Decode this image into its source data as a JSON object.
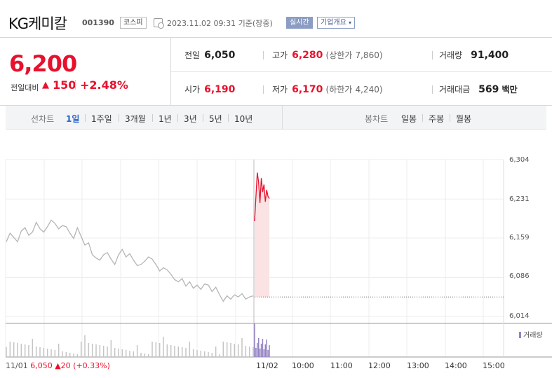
{
  "header": {
    "company_name": "KG케미칼",
    "code": "001390",
    "market": "코스피",
    "as_of": "2023.11.02 09:31 기준(장중)",
    "live_badge": "실시간",
    "company_info_button": "기업개요"
  },
  "quote": {
    "price": "6,200",
    "change_label": "전일대비",
    "change_arrow": "▲",
    "change": "150",
    "change_pct": "+2.48%",
    "prev_close_label": "전일",
    "prev_close": "6,050",
    "high_label": "고가",
    "high": "6,280",
    "upper_limit_label": "(상한가",
    "upper_limit": "7,860)",
    "volume_label": "거래량",
    "volume": "91,400",
    "open_label": "시가",
    "open": "6,190",
    "low_label": "저가",
    "low": "6,170",
    "lower_limit_label": "(하한가",
    "lower_limit": "4,240)",
    "trade_value_label": "거래대금",
    "trade_value": "569",
    "trade_value_unit": "백만"
  },
  "tabs": {
    "line_label": "선차트",
    "line": [
      "1일",
      "1주일",
      "3개월",
      "1년",
      "3년",
      "5년",
      "10년"
    ],
    "selected": "1일",
    "candle_label": "봉차트",
    "candle": [
      "일봉",
      "주봉",
      "월봉"
    ]
  },
  "chart_data": {
    "type": "line",
    "y_ticks": [
      "6,304",
      "6,231",
      "6,159",
      "6,086",
      "6,014"
    ],
    "ylim": [
      6014,
      6304
    ],
    "x_ticks": [
      "11/02",
      "10:00",
      "11:00",
      "12:00",
      "13:00",
      "14:00",
      "15:00"
    ],
    "prev_day_label": "11/01",
    "prev_day_close": "6,050",
    "prev_day_change_arrow": "▲",
    "prev_day_change": "20",
    "prev_day_change_pct": "(+0.33%)",
    "volume_legend": "거래량",
    "colors": {
      "up": "#e8112d",
      "prev_day": "#b5b5b5",
      "fill": "#fbe3e3",
      "volume_today": "#9483c4",
      "volume_prev": "#c4c4c4"
    },
    "prev_day_series": [
      6152,
      6168,
      6160,
      6152,
      6172,
      6178,
      6164,
      6170,
      6188,
      6176,
      6170,
      6180,
      6192,
      6186,
      6176,
      6182,
      6180,
      6168,
      6158,
      6178,
      6162,
      6146,
      6150,
      6128,
      6122,
      6118,
      6128,
      6132,
      6120,
      6110,
      6128,
      6138,
      6124,
      6130,
      6118,
      6108,
      6110,
      6116,
      6124,
      6120,
      6110,
      6098,
      6104,
      6100,
      6092,
      6082,
      6078,
      6084,
      6070,
      6078,
      6066,
      6072,
      6064,
      6074,
      6072,
      6060,
      6068,
      6054,
      6042,
      6052,
      6046,
      6054,
      6050,
      6056,
      6046,
      6050,
      6052
    ],
    "today_series": [
      6190,
      6236,
      6280,
      6262,
      6224,
      6270,
      6244,
      6258,
      6226,
      6248,
      6236,
      6232
    ],
    "today_baseline": 6050
  }
}
